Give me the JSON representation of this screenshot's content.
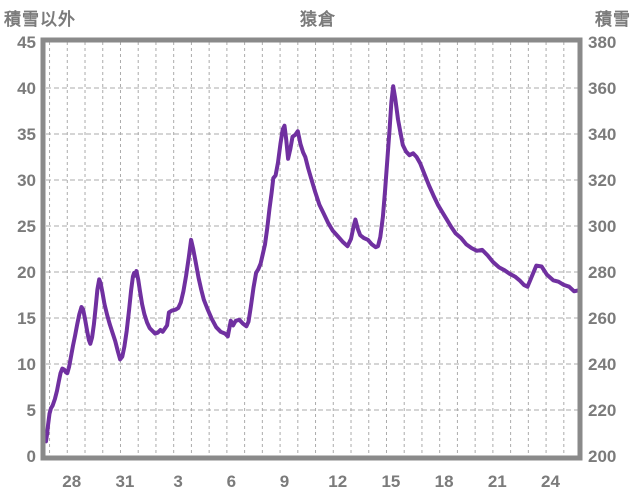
{
  "header": {
    "left_axis_label": "積雪以外",
    "title": "猿倉",
    "right_axis_label": "積雪"
  },
  "colors": {
    "line": "#7030A0",
    "axis_text": "#7b7b7b",
    "frame": "#8a8a8a",
    "grid": "#ababab",
    "background": "#ffffff"
  },
  "chart_data": {
    "type": "line",
    "title": "猿倉",
    "legend": "none",
    "grid": "dashed, vertical line per day, horizontal line per left-axis step of 5",
    "x_axis": {
      "tick_labels": [
        "28",
        "31",
        "3",
        "6",
        "9",
        "12",
        "15",
        "18",
        "21",
        "24"
      ],
      "tick_positions_days": [
        1.45,
        4.45,
        7.45,
        10.45,
        13.45,
        16.45,
        19.45,
        22.45,
        25.45,
        28.45
      ],
      "domain_days": [
        0,
        30
      ],
      "day_gridline_offset": 0.2,
      "day_gridline_count": 30
    },
    "y_axis_left": {
      "label": "積雪以外",
      "min": 0,
      "max": 45,
      "tick_step": 5,
      "tick_labels": [
        "45",
        "40",
        "35",
        "30",
        "25",
        "20",
        "15",
        "10",
        "5",
        "0"
      ]
    },
    "y_axis_right": {
      "label": "積雪",
      "min": 200,
      "max": 380,
      "tick_step": 20,
      "tick_labels": [
        "380",
        "360",
        "340",
        "320",
        "300",
        "280",
        "260",
        "240",
        "220",
        "200"
      ],
      "mapping": "right_value = 200 + 4 * left_value"
    },
    "series": [
      {
        "name": "積雪",
        "color": "#7030A0",
        "units": "left-axis scale (multiply by 4 and add 200 for right axis cm)",
        "points": [
          [
            0.0,
            1.6
          ],
          [
            0.06,
            2.4
          ],
          [
            0.12,
            3.4
          ],
          [
            0.2,
            4.6
          ],
          [
            0.28,
            5.2
          ],
          [
            0.38,
            5.5
          ],
          [
            0.5,
            6.2
          ],
          [
            0.62,
            7.1
          ],
          [
            0.72,
            8.1
          ],
          [
            0.82,
            9.0
          ],
          [
            0.92,
            9.5
          ],
          [
            1.02,
            9.4
          ],
          [
            1.12,
            9.1
          ],
          [
            1.2,
            9.0
          ],
          [
            1.3,
            9.7
          ],
          [
            1.4,
            10.7
          ],
          [
            1.52,
            12.0
          ],
          [
            1.64,
            13.1
          ],
          [
            1.76,
            14.3
          ],
          [
            1.88,
            15.4
          ],
          [
            2.0,
            16.2
          ],
          [
            2.1,
            15.9
          ],
          [
            2.2,
            14.9
          ],
          [
            2.32,
            13.6
          ],
          [
            2.42,
            12.6
          ],
          [
            2.5,
            12.2
          ],
          [
            2.6,
            12.9
          ],
          [
            2.7,
            14.3
          ],
          [
            2.8,
            16.2
          ],
          [
            2.9,
            18.1
          ],
          [
            3.0,
            19.2
          ],
          [
            3.08,
            18.8
          ],
          [
            3.18,
            17.8
          ],
          [
            3.3,
            16.5
          ],
          [
            3.45,
            15.3
          ],
          [
            3.6,
            14.3
          ],
          [
            3.75,
            13.4
          ],
          [
            3.9,
            12.5
          ],
          [
            4.05,
            11.4
          ],
          [
            4.18,
            10.5
          ],
          [
            4.3,
            10.8
          ],
          [
            4.42,
            11.9
          ],
          [
            4.55,
            13.6
          ],
          [
            4.68,
            15.8
          ],
          [
            4.8,
            18.0
          ],
          [
            4.9,
            19.5
          ],
          [
            4.97,
            19.9
          ],
          [
            5.03,
            19.6
          ],
          [
            5.1,
            20.1
          ],
          [
            5.2,
            19.2
          ],
          [
            5.3,
            17.9
          ],
          [
            5.42,
            16.5
          ],
          [
            5.55,
            15.4
          ],
          [
            5.7,
            14.5
          ],
          [
            5.85,
            13.9
          ],
          [
            6.0,
            13.6
          ],
          [
            6.15,
            13.3
          ],
          [
            6.3,
            13.4
          ],
          [
            6.45,
            13.7
          ],
          [
            6.58,
            13.5
          ],
          [
            6.72,
            13.9
          ],
          [
            6.83,
            14.2
          ],
          [
            6.93,
            15.6
          ],
          [
            7.1,
            15.8
          ],
          [
            7.3,
            15.9
          ],
          [
            7.46,
            16.1
          ],
          [
            7.6,
            16.7
          ],
          [
            7.75,
            17.9
          ],
          [
            7.9,
            19.6
          ],
          [
            8.05,
            21.6
          ],
          [
            8.18,
            23.5
          ],
          [
            8.3,
            22.5
          ],
          [
            8.45,
            21.0
          ],
          [
            8.6,
            19.4
          ],
          [
            8.75,
            18.1
          ],
          [
            8.9,
            17.0
          ],
          [
            9.1,
            16.0
          ],
          [
            9.35,
            14.9
          ],
          [
            9.6,
            14.0
          ],
          [
            9.85,
            13.5
          ],
          [
            10.1,
            13.3
          ],
          [
            10.25,
            13.0
          ],
          [
            10.42,
            14.7
          ],
          [
            10.55,
            14.2
          ],
          [
            10.7,
            14.7
          ],
          [
            10.9,
            14.8
          ],
          [
            11.1,
            14.4
          ],
          [
            11.3,
            14.1
          ],
          [
            11.42,
            14.6
          ],
          [
            11.55,
            16.2
          ],
          [
            11.7,
            18.3
          ],
          [
            11.85,
            19.9
          ],
          [
            11.97,
            20.3
          ],
          [
            12.1,
            20.9
          ],
          [
            12.22,
            21.9
          ],
          [
            12.35,
            23.0
          ],
          [
            12.48,
            24.8
          ],
          [
            12.6,
            26.8
          ],
          [
            12.72,
            28.6
          ],
          [
            12.82,
            30.2
          ],
          [
            12.95,
            30.5
          ],
          [
            13.08,
            31.9
          ],
          [
            13.22,
            33.9
          ],
          [
            13.35,
            35.5
          ],
          [
            13.45,
            35.9
          ],
          [
            13.55,
            34.3
          ],
          [
            13.65,
            32.3
          ],
          [
            13.78,
            33.4
          ],
          [
            13.9,
            34.7
          ],
          [
            14.05,
            34.9
          ],
          [
            14.2,
            35.3
          ],
          [
            14.35,
            33.9
          ],
          [
            14.5,
            33.0
          ],
          [
            14.62,
            32.5
          ],
          [
            14.78,
            31.3
          ],
          [
            14.98,
            30.0
          ],
          [
            15.18,
            28.7
          ],
          [
            15.42,
            27.3
          ],
          [
            15.67,
            26.3
          ],
          [
            15.92,
            25.3
          ],
          [
            16.17,
            24.5
          ],
          [
            16.45,
            23.9
          ],
          [
            16.72,
            23.3
          ],
          [
            17.0,
            22.8
          ],
          [
            17.2,
            23.6
          ],
          [
            17.35,
            25.0
          ],
          [
            17.45,
            25.7
          ],
          [
            17.58,
            24.7
          ],
          [
            17.72,
            24.0
          ],
          [
            17.92,
            23.7
          ],
          [
            18.15,
            23.5
          ],
          [
            18.38,
            23.0
          ],
          [
            18.6,
            22.7
          ],
          [
            18.72,
            22.8
          ],
          [
            18.85,
            23.8
          ],
          [
            19.0,
            26.0
          ],
          [
            19.12,
            28.9
          ],
          [
            19.25,
            32.3
          ],
          [
            19.38,
            35.7
          ],
          [
            19.48,
            38.5
          ],
          [
            19.58,
            40.2
          ],
          [
            19.7,
            38.8
          ],
          [
            19.85,
            36.6
          ],
          [
            20.0,
            35.0
          ],
          [
            20.12,
            33.8
          ],
          [
            20.3,
            33.1
          ],
          [
            20.5,
            32.7
          ],
          [
            20.7,
            32.9
          ],
          [
            20.9,
            32.5
          ],
          [
            21.1,
            31.8
          ],
          [
            21.35,
            30.6
          ],
          [
            21.6,
            29.4
          ],
          [
            21.85,
            28.3
          ],
          [
            22.1,
            27.3
          ],
          [
            22.35,
            26.5
          ],
          [
            22.6,
            25.7
          ],
          [
            22.85,
            24.9
          ],
          [
            23.1,
            24.2
          ],
          [
            23.4,
            23.7
          ],
          [
            23.7,
            23.0
          ],
          [
            24.0,
            22.6
          ],
          [
            24.3,
            22.3
          ],
          [
            24.6,
            22.4
          ],
          [
            24.9,
            21.8
          ],
          [
            25.2,
            21.1
          ],
          [
            25.55,
            20.5
          ],
          [
            25.85,
            20.2
          ],
          [
            26.15,
            19.8
          ],
          [
            26.45,
            19.5
          ],
          [
            26.7,
            19.1
          ],
          [
            26.95,
            18.6
          ],
          [
            27.15,
            18.4
          ],
          [
            27.35,
            19.3
          ],
          [
            27.65,
            20.7
          ],
          [
            27.95,
            20.6
          ],
          [
            28.25,
            19.7
          ],
          [
            28.6,
            19.1
          ],
          [
            28.9,
            18.95
          ],
          [
            29.2,
            18.6
          ],
          [
            29.5,
            18.4
          ],
          [
            29.78,
            17.9
          ],
          [
            30.0,
            18.0
          ]
        ]
      }
    ]
  }
}
